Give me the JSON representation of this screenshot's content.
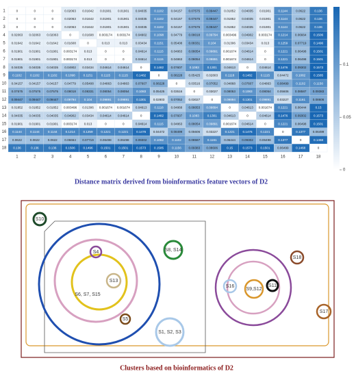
{
  "chart_data": {
    "type": "heatmap",
    "caption": "Distance matrix derived from bioinformatics feature vectors of D2",
    "row_labels": [
      1,
      2,
      3,
      4,
      5,
      6,
      7,
      8,
      9,
      10,
      11,
      12,
      13,
      14,
      15,
      16,
      17,
      18
    ],
    "col_labels": [
      1,
      2,
      3,
      4,
      5,
      6,
      7,
      8,
      9,
      10,
      11,
      12,
      13,
      14,
      15,
      16,
      17,
      18
    ],
    "color": "#1766b3",
    "colorbar": {
      "lim": [
        0,
        0.155
      ],
      "ticks": [
        0,
        0.05,
        0.1
      ]
    },
    "matrix": [
      [
        0,
        0,
        0,
        0.02063,
        0.01642,
        0.01901,
        0.01901,
        0.04035,
        0.1102,
        0.04157,
        0.07575,
        0.09447,
        0.01852,
        0.04035,
        0.01901,
        0.1144,
        0.0622,
        0.136
      ],
      [
        0,
        0,
        0,
        0.02063,
        0.01642,
        0.01901,
        0.01901,
        0.04035,
        0.1102,
        0.04157,
        0.07575,
        0.09447,
        0.01852,
        0.04035,
        0.01901,
        0.1144,
        0.0622,
        0.136
      ],
      [
        0,
        0,
        0,
        0.02063,
        0.01642,
        0.01901,
        0.01901,
        0.04035,
        0.1102,
        0.04157,
        0.07575,
        0.09447,
        0.01852,
        0.04035,
        0.01901,
        0.1144,
        0.0622,
        0.136
      ],
      [
        0.02063,
        0.02063,
        0.02063,
        0,
        0.01608,
        0.003174,
        0.003174,
        0.04902,
        0.1098,
        0.04779,
        0.08018,
        0.09794,
        0.003496,
        0.04902,
        0.003174,
        0.1214,
        0.06664,
        0.1506
      ],
      [
        0.01642,
        0.01642,
        0.01642,
        0.01608,
        0,
        0.013,
        0.013,
        0.03434,
        0.1151,
        0.05408,
        0.08331,
        0.104,
        0.01306,
        0.03434,
        0.013,
        0.1259,
        0.07719,
        0.1496
      ],
      [
        0.01901,
        0.01901,
        0.01901,
        0.003174,
        0.013,
        0,
        0,
        0.04614,
        0.1115,
        0.04863,
        0.08054,
        0.09891,
        0.001674,
        0.04614,
        0,
        0.1221,
        0.06498,
        0.1501
      ],
      [
        0.01901,
        0.01901,
        0.01901,
        0.003174,
        0.013,
        0,
        0,
        0.04614,
        0.1115,
        0.04863,
        0.08054,
        0.09891,
        0.001674,
        0.04614,
        0,
        0.1221,
        0.06498,
        0.1501
      ],
      [
        0.04035,
        0.04035,
        0.04035,
        0.04902,
        0.03434,
        0.04614,
        0.04614,
        0,
        0.1482,
        0.07607,
        0.1083,
        0.1301,
        0.04613,
        0,
        0.04614,
        0.1476,
        0.09302,
        0.1573
      ],
      [
        0.1102,
        0.1102,
        0.1102,
        0.1098,
        0.1151,
        0.1115,
        0.1115,
        0.1482,
        0,
        0.08228,
        0.05425,
        0.02803,
        0.1118,
        0.1482,
        0.1115,
        0.04472,
        0.1082,
        0.1585
      ],
      [
        0.04157,
        0.04157,
        0.04157,
        0.04779,
        0.05408,
        0.04863,
        0.04863,
        0.07607,
        0.08228,
        0,
        0.03516,
        0.07052,
        0.04868,
        0.07607,
        0.04863,
        0.08499,
        0.1102,
        0.1156
      ],
      [
        0.07575,
        0.07575,
        0.07575,
        0.08018,
        0.08331,
        0.08054,
        0.08054,
        0.1083,
        0.05425,
        0.03516,
        0,
        0.03027,
        0.08053,
        0.1083,
        0.08054,
        0.05606,
        0.08587,
        0.09383
      ],
      [
        0.09447,
        0.09447,
        0.09447,
        0.09794,
        0.104,
        0.09891,
        0.09891,
        0.1301,
        0.02803,
        0.07052,
        0.03027,
        0,
        0.09894,
        0.1301,
        0.09891,
        0.03227,
        0.1161,
        0.08606
      ],
      [
        0.01852,
        0.01852,
        0.01852,
        0.003496,
        0.01306,
        0.001674,
        0.001674,
        0.04613,
        0.1118,
        0.04868,
        0.08053,
        0.09894,
        0,
        0.04613,
        0.001674,
        0.1221,
        0.06444,
        0.15
      ],
      [
        0.04035,
        0.04035,
        0.04035,
        0.04902,
        0.03434,
        0.04614,
        0.04614,
        0,
        0.1482,
        0.07607,
        0.1083,
        0.1301,
        0.04613,
        0,
        0.04614,
        0.1476,
        0.09302,
        0.1573
      ],
      [
        0.01901,
        0.01901,
        0.01901,
        0.003174,
        0.013,
        0,
        0,
        0.04614,
        0.1115,
        0.04863,
        0.08054,
        0.09891,
        0.001674,
        0.04614,
        0,
        0.1221,
        0.06498,
        0.1501
      ],
      [
        0.1144,
        0.1144,
        0.1144,
        0.1214,
        0.1259,
        0.1221,
        0.1221,
        0.1476,
        0.04472,
        0.08499,
        0.05606,
        0.03227,
        0.1221,
        0.1476,
        0.1221,
        0,
        0.1377,
        0.06499
      ],
      [
        0.0622,
        0.0622,
        0.0622,
        0.06664,
        0.07719,
        0.06498,
        0.06498,
        0.09302,
        0.1082,
        0.1102,
        0.08587,
        0.1161,
        0.06444,
        0.09302,
        0.06498,
        0.1377,
        0,
        0.1468
      ],
      [
        0.136,
        0.136,
        0.136,
        0.1506,
        0.1496,
        0.1501,
        0.1501,
        0.1573,
        0.1585,
        0.1156,
        0.09383,
        0.08606,
        0.15,
        0.1573,
        0.1501,
        0.06499,
        0.1468,
        0
      ]
    ]
  },
  "diagram": {
    "caption": "Clusters based on bioinformatics of D2",
    "nodes": [
      {
        "label": "S10"
      },
      {
        "label": "S4"
      },
      {
        "label": "S13"
      },
      {
        "label": "S6, S7, S15"
      },
      {
        "label": "S5"
      },
      {
        "label": "S8, S14"
      },
      {
        "label": "S1, S2, S3"
      },
      {
        "label": "S16"
      },
      {
        "label": "S9,S12"
      },
      {
        "label": "S11"
      },
      {
        "label": "S18"
      },
      {
        "label": "S17"
      }
    ]
  }
}
